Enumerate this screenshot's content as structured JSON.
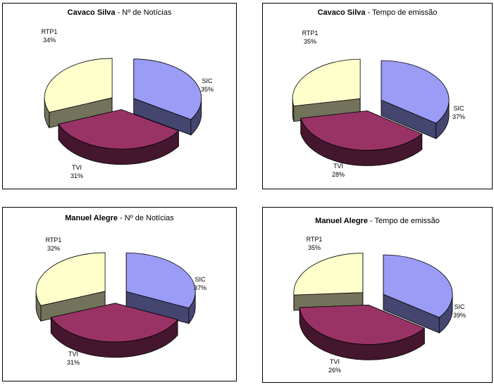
{
  "chart_data": [
    {
      "type": "pie",
      "title_bold": "Cavaco Silva",
      "title_rest": " - Nº de Notícias",
      "categories": [
        "RTP1",
        "SIC",
        "TVI"
      ],
      "values": [
        34,
        35,
        31
      ],
      "labels": [
        "34%",
        "35%",
        "31%"
      ],
      "colors": [
        "#9a9cf6",
        "#993366",
        "#ffffcc"
      ],
      "exploded": true,
      "three_d": true
    },
    {
      "type": "pie",
      "title_bold": "Cavaco Silva",
      "title_rest": " - Tempo de emissão",
      "categories": [
        "RTP1",
        "SIC",
        "TVI"
      ],
      "values": [
        35,
        37,
        28
      ],
      "labels": [
        "35%",
        "37%",
        "28%"
      ],
      "colors": [
        "#9a9cf6",
        "#993366",
        "#ffffcc"
      ],
      "exploded": true,
      "three_d": true
    },
    {
      "type": "pie",
      "title_bold": "Manuel Alegre",
      "title_rest": " - Nº de Notícias",
      "categories": [
        "RTP1",
        "SIC",
        "TVI"
      ],
      "values": [
        32,
        37,
        31
      ],
      "labels": [
        "32%",
        "37%",
        "31%"
      ],
      "colors": [
        "#9a9cf6",
        "#993366",
        "#ffffcc"
      ],
      "exploded": true,
      "three_d": true
    },
    {
      "type": "pie",
      "title_bold": "Manuel Alegre",
      "title_rest": " - Tempo de emissão",
      "categories": [
        "RTP1",
        "SIC",
        "TVI"
      ],
      "values": [
        35,
        39,
        26
      ],
      "labels": [
        "35%",
        "39%",
        "26%"
      ],
      "colors": [
        "#9a9cf6",
        "#993366",
        "#ffffcc"
      ],
      "exploded": true,
      "three_d": true
    }
  ]
}
